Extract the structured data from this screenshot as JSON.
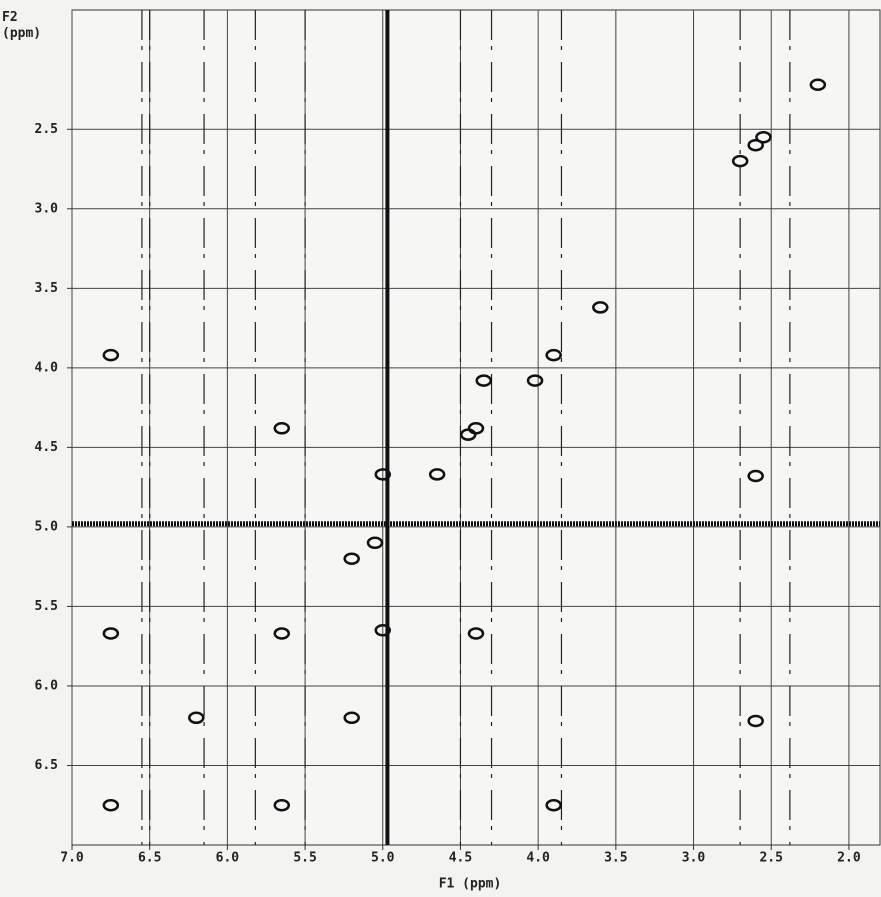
{
  "chart_data": {
    "type": "scatter",
    "x_label": "F1 (ppm)",
    "y_label": "F2 (ppm)",
    "xlim": [
      7.0,
      1.8
    ],
    "ylim": [
      1.75,
      7.0
    ],
    "xticks": [
      {
        "value": 7,
        "label": "7.0"
      },
      6.5,
      {
        "value": 6,
        "label": "6.0"
      },
      5.5,
      {
        "value": 5,
        "label": "5.0"
      },
      4.5,
      {
        "value": 4,
        "label": "4.0"
      },
      3.5,
      {
        "value": 3,
        "label": "3.0"
      },
      2.5,
      {
        "value": 2,
        "label": "2.0"
      }
    ],
    "yticks": [
      2.5,
      {
        "value": 3,
        "label": "3.0"
      },
      3.5,
      {
        "value": 4,
        "label": "4.0"
      },
      4.5,
      {
        "value": 5,
        "label": "5.0"
      },
      5.5,
      {
        "value": 6,
        "label": "6.0"
      },
      6.5
    ],
    "grid": true,
    "color": "#111111",
    "x": [
      2.2,
      2.55,
      2.6,
      2.7,
      3.6,
      3.9,
      4.02,
      4.4,
      4.45,
      4.65,
      5.05,
      5.2,
      5.65,
      6.2,
      6.75,
      6.75,
      5.65,
      3.9,
      4.4,
      5.2,
      5.65,
      4.35,
      6.75,
      2.6,
      2.6,
      5.0,
      5.0
    ],
    "y": [
      2.22,
      2.55,
      2.6,
      2.7,
      3.62,
      3.92,
      4.08,
      4.38,
      4.42,
      4.67,
      5.1,
      5.2,
      5.67,
      6.2,
      6.75,
      5.67,
      6.75,
      6.75,
      5.67,
      6.2,
      4.38,
      4.08,
      3.92,
      4.68,
      6.22,
      4.67,
      5.65
    ],
    "ridges": [
      {
        "axis": "x",
        "value": 4.97
      },
      {
        "axis": "y",
        "value": 4.98
      }
    ],
    "streaks": [
      6.55,
      6.5,
      6.15,
      5.82,
      5.5,
      4.5,
      4.3,
      3.85,
      2.7,
      2.38
    ]
  }
}
